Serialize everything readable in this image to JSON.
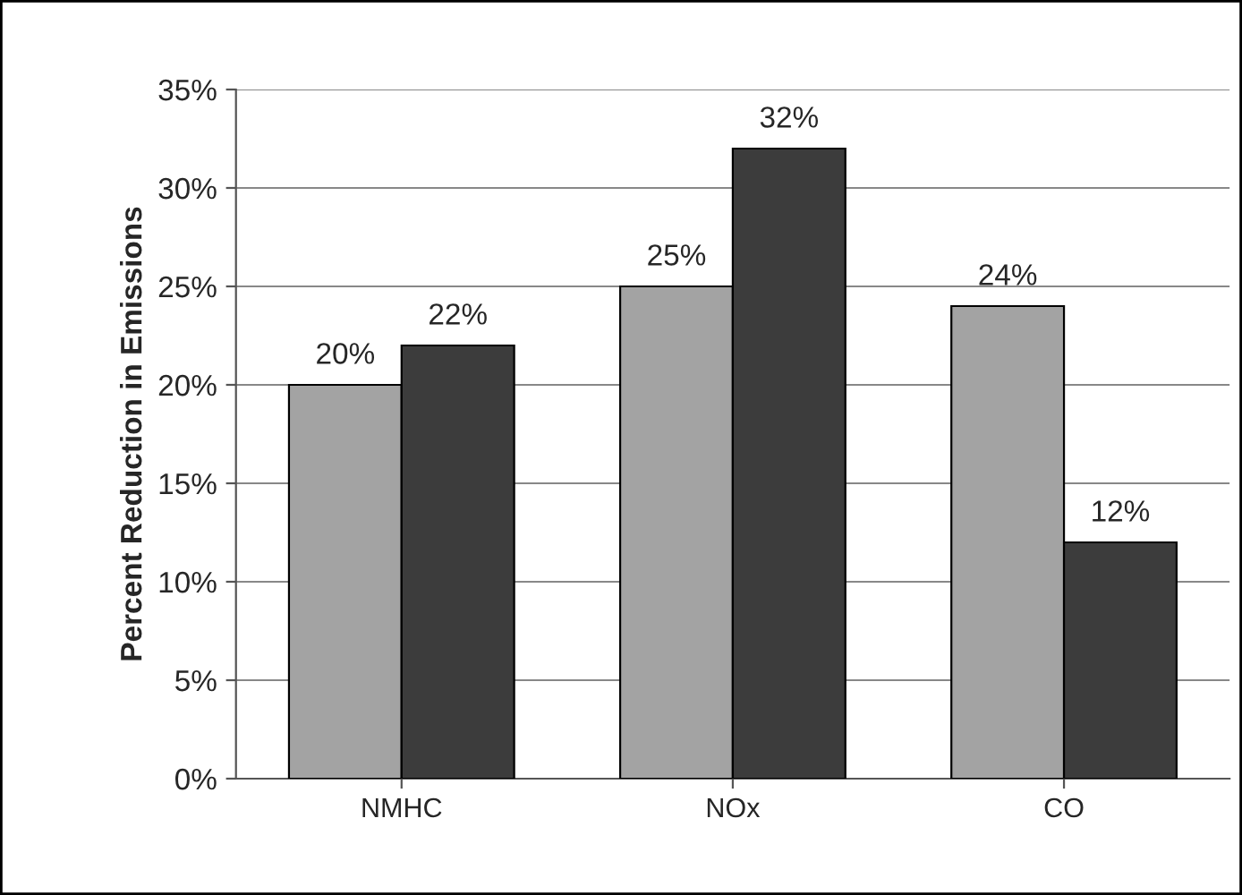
{
  "chart_data": {
    "type": "bar",
    "ylabel": "Percent Reduction in Emissions",
    "categories": [
      "NMHC",
      "NOx",
      "CO"
    ],
    "series": [
      {
        "color": "#a3a3a3",
        "values": [
          20,
          25,
          24
        ],
        "value_labels": [
          "20%",
          "25%",
          "24%"
        ]
      },
      {
        "color": "#3c3c3c",
        "values": [
          22,
          32,
          12
        ],
        "value_labels": [
          "22%",
          "32%",
          "12%"
        ]
      }
    ],
    "ylim": [
      0,
      35
    ],
    "yticks": [
      {
        "value": 0,
        "label": "0%"
      },
      {
        "value": 5,
        "label": "5%"
      },
      {
        "value": 10,
        "label": "10%"
      },
      {
        "value": 15,
        "label": "15%"
      },
      {
        "value": 20,
        "label": "20%"
      },
      {
        "value": 25,
        "label": "25%"
      },
      {
        "value": 30,
        "label": "30%"
      },
      {
        "value": 35,
        "label": "35%"
      }
    ],
    "grid": "y"
  }
}
